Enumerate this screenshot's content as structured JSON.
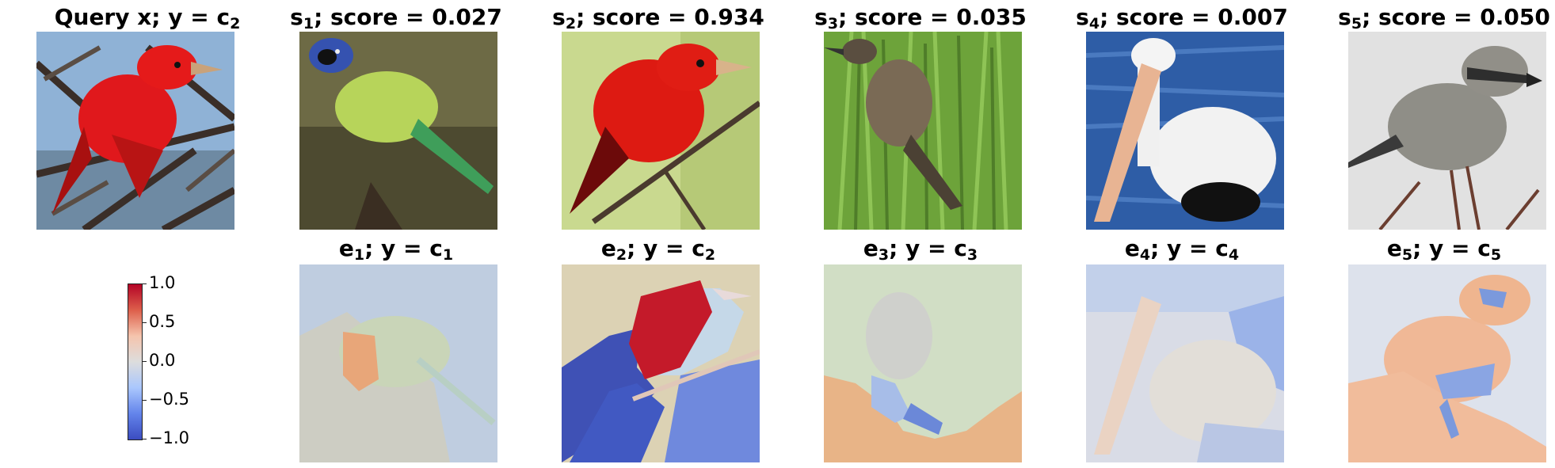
{
  "query": {
    "title_main": "Query x; y = c",
    "title_sub": "2"
  },
  "samples": [
    {
      "label": "s",
      "index": "1",
      "score_text": "; score = 0.027",
      "expl_label": "e",
      "expl_class_text": "; y = c",
      "expl_class_sub": "1"
    },
    {
      "label": "s",
      "index": "2",
      "score_text": "; score = 0.934",
      "expl_label": "e",
      "expl_class_text": "; y = c",
      "expl_class_sub": "2"
    },
    {
      "label": "s",
      "index": "3",
      "score_text": "; score = 0.035",
      "expl_label": "e",
      "expl_class_text": "; y = c",
      "expl_class_sub": "3"
    },
    {
      "label": "s",
      "index": "4",
      "score_text": "; score = 0.007",
      "expl_label": "e",
      "expl_class_text": "; y = c",
      "expl_class_sub": "4"
    },
    {
      "label": "s",
      "index": "5",
      "score_text": "; score = 0.050",
      "expl_label": "e",
      "expl_class_text": "; y = c",
      "expl_class_sub": "5"
    }
  ],
  "colorbar": {
    "ticks": [
      "1.0",
      "0.5",
      "0.0",
      "−0.5",
      "−1.0"
    ],
    "colormap": [
      "#b40426",
      "#dd5f4b",
      "#f5c4ad",
      "#dddddd",
      "#aac7fd",
      "#6384eb",
      "#3b4cc0"
    ]
  },
  "images": {
    "query": "red-bird-on-branch",
    "s1": "green-jay-bird",
    "s2": "red-tanager-bird",
    "s3": "brown-bird-in-grass",
    "s4": "white-pelican",
    "s5": "gray-shrike-bird"
  }
}
